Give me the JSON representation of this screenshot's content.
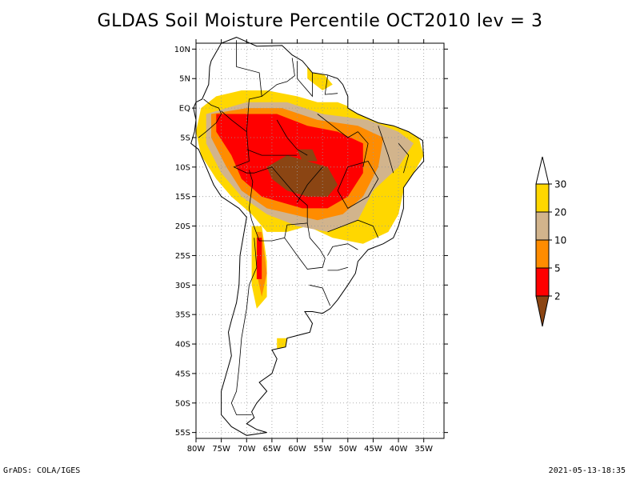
{
  "title": "GLDAS Soil Moisture Percentile OCT2010 lev = 3",
  "footer": {
    "left": "GrADS: COLA/IGES",
    "right": "2021-05-13-18:35"
  },
  "map": {
    "lon_range": [
      -80,
      -31
    ],
    "lat_range": [
      -56,
      11
    ],
    "lat_ticks": [
      {
        "v": 10,
        "label": "10N"
      },
      {
        "v": 5,
        "label": "5N"
      },
      {
        "v": 0,
        "label": "EQ"
      },
      {
        "v": -5,
        "label": "5S"
      },
      {
        "v": -10,
        "label": "10S"
      },
      {
        "v": -15,
        "label": "15S"
      },
      {
        "v": -20,
        "label": "20S"
      },
      {
        "v": -25,
        "label": "25S"
      },
      {
        "v": -30,
        "label": "30S"
      },
      {
        "v": -35,
        "label": "35S"
      },
      {
        "v": -40,
        "label": "40S"
      },
      {
        "v": -45,
        "label": "45S"
      },
      {
        "v": -50,
        "label": "50S"
      },
      {
        "v": -55,
        "label": "55S"
      }
    ],
    "lon_ticks": [
      {
        "v": -80,
        "label": "80W"
      },
      {
        "v": -75,
        "label": "75W"
      },
      {
        "v": -70,
        "label": "70W"
      },
      {
        "v": -65,
        "label": "65W"
      },
      {
        "v": -60,
        "label": "60W"
      },
      {
        "v": -55,
        "label": "55W"
      },
      {
        "v": -50,
        "label": "50W"
      },
      {
        "v": -45,
        "label": "45W"
      },
      {
        "v": -40,
        "label": "40W"
      },
      {
        "v": -35,
        "label": "35W"
      }
    ],
    "gridlines": true,
    "colors": {
      "lt2": "#8B4513",
      "2-5": "#FF0000",
      "5-10": "#FF8C00",
      "10-20": "#D2B48C",
      "20-30": "#FFD700"
    },
    "regions": [
      {
        "class": "20-30",
        "pts": [
          [
            -79,
            0
          ],
          [
            -76,
            2
          ],
          [
            -71,
            3
          ],
          [
            -66,
            3
          ],
          [
            -60,
            2
          ],
          [
            -56,
            1
          ],
          [
            -52,
            1
          ],
          [
            -49,
            0
          ],
          [
            -45,
            -2
          ],
          [
            -40,
            -3
          ],
          [
            -36,
            -5
          ],
          [
            -35,
            -8
          ],
          [
            -37,
            -11
          ],
          [
            -39,
            -14
          ],
          [
            -40,
            -18
          ],
          [
            -42,
            -21
          ],
          [
            -47,
            -23
          ],
          [
            -53,
            -22
          ],
          [
            -58,
            -20
          ],
          [
            -62,
            -21
          ],
          [
            -66,
            -21
          ],
          [
            -69,
            -18
          ],
          [
            -73,
            -15
          ],
          [
            -76,
            -12
          ],
          [
            -79,
            -8
          ],
          [
            -80,
            -4
          ]
        ]
      },
      {
        "class": "20-30",
        "pts": [
          [
            -69,
            -20
          ],
          [
            -67,
            -20
          ],
          [
            -66,
            -26
          ],
          [
            -66,
            -32
          ],
          [
            -68,
            -34
          ],
          [
            -69,
            -30
          ]
        ]
      },
      {
        "class": "20-30",
        "pts": [
          [
            -58,
            7
          ],
          [
            -55,
            6
          ],
          [
            -53,
            4
          ],
          [
            -55,
            3
          ],
          [
            -58,
            5
          ]
        ]
      },
      {
        "class": "20-30",
        "pts": [
          [
            -64,
            -39
          ],
          [
            -62,
            -39
          ],
          [
            -62,
            -41
          ],
          [
            -64,
            -41
          ]
        ]
      },
      {
        "class": "10-20",
        "pts": [
          [
            -78,
            -1
          ],
          [
            -70,
            1
          ],
          [
            -62,
            1
          ],
          [
            -55,
            -1
          ],
          [
            -46,
            -2
          ],
          [
            -40,
            -4
          ],
          [
            -37,
            -6
          ],
          [
            -40,
            -10
          ],
          [
            -45,
            -14
          ],
          [
            -48,
            -19
          ],
          [
            -54,
            -21
          ],
          [
            -60,
            -20
          ],
          [
            -66,
            -18
          ],
          [
            -71,
            -15
          ],
          [
            -75,
            -11
          ],
          [
            -78,
            -6
          ]
        ]
      },
      {
        "class": "5-10",
        "pts": [
          [
            -77,
            -1
          ],
          [
            -70,
            0
          ],
          [
            -63,
            0
          ],
          [
            -56,
            -2
          ],
          [
            -48,
            -3
          ],
          [
            -43,
            -5
          ],
          [
            -44,
            -10
          ],
          [
            -47,
            -15
          ],
          [
            -51,
            -18
          ],
          [
            -56,
            -19
          ],
          [
            -61,
            -18
          ],
          [
            -66,
            -17
          ],
          [
            -71,
            -14
          ],
          [
            -74,
            -10
          ],
          [
            -77,
            -5
          ]
        ]
      },
      {
        "class": "5-10",
        "pts": [
          [
            -68,
            -21
          ],
          [
            -67,
            -21
          ],
          [
            -66,
            -28
          ],
          [
            -67,
            -32
          ],
          [
            -68,
            -28
          ]
        ]
      },
      {
        "class": "2-5",
        "pts": [
          [
            -76,
            -1
          ],
          [
            -70,
            -1
          ],
          [
            -64,
            -1
          ],
          [
            -58,
            -3
          ],
          [
            -52,
            -4
          ],
          [
            -47,
            -6
          ],
          [
            -47,
            -11
          ],
          [
            -50,
            -15
          ],
          [
            -54,
            -17
          ],
          [
            -59,
            -17
          ],
          [
            -63,
            -16
          ],
          [
            -67,
            -15
          ],
          [
            -71,
            -12
          ],
          [
            -73,
            -8
          ],
          [
            -76,
            -4
          ]
        ]
      },
      {
        "class": "2-5",
        "pts": [
          [
            -68,
            -22
          ],
          [
            -67,
            -22
          ],
          [
            -67,
            -29
          ],
          [
            -68,
            -29
          ]
        ]
      },
      {
        "class": "lt2",
        "pts": [
          [
            -66,
            -10
          ],
          [
            -62,
            -8
          ],
          [
            -58,
            -9
          ],
          [
            -54,
            -10
          ],
          [
            -52,
            -13
          ],
          [
            -54,
            -15
          ],
          [
            -58,
            -15
          ],
          [
            -62,
            -14
          ],
          [
            -65,
            -12
          ]
        ]
      },
      {
        "class": "lt2",
        "pts": [
          [
            -60,
            -7
          ],
          [
            -57,
            -7
          ],
          [
            -56,
            -9
          ],
          [
            -59,
            -9
          ]
        ]
      }
    ]
  },
  "colorbar": {
    "labels": [
      "2",
      "5",
      "10",
      "20",
      "30"
    ]
  }
}
